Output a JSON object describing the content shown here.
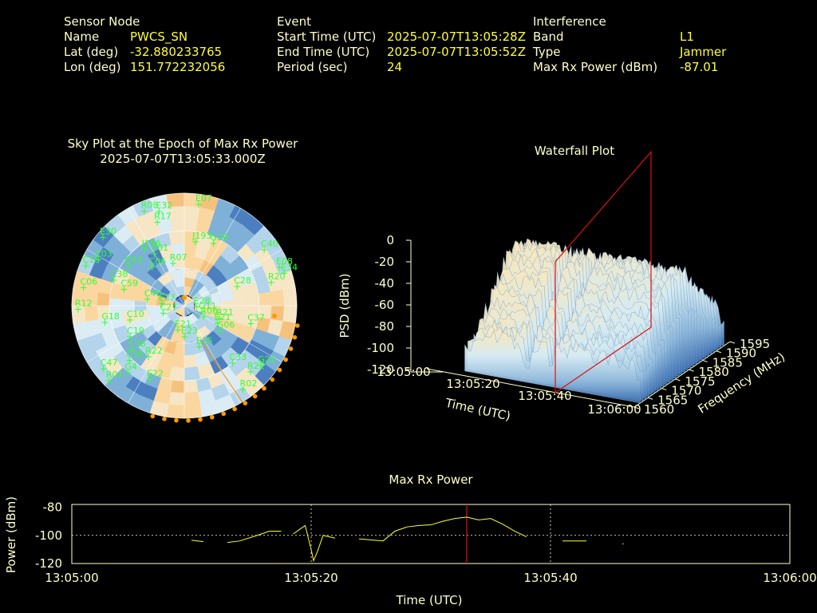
{
  "header": {
    "sensor": {
      "heading": "Sensor Node",
      "rows": [
        {
          "label": "Name",
          "value": "PWCS_SN"
        },
        {
          "label": "Lat (deg)",
          "value": "-32.880233765"
        },
        {
          "label": "Lon (deg)",
          "value": "151.772232056"
        }
      ]
    },
    "event": {
      "heading": "Event",
      "rows": [
        {
          "label": "Start Time (UTC)",
          "value": "2025-07-07T13:05:28Z"
        },
        {
          "label": "End Time (UTC)",
          "value": "2025-07-07T13:05:52Z"
        },
        {
          "label": "Period (sec)",
          "value": "24"
        }
      ]
    },
    "interference": {
      "heading": "Interference",
      "rows": [
        {
          "label": "Band",
          "value": "L1"
        },
        {
          "label": "Type",
          "value": "Jammer"
        },
        {
          "label": "Max Rx Power (dBm)",
          "value": "-87.01"
        }
      ]
    }
  },
  "sky_plot": {
    "title": "Sky Plot at the Epoch of Max Rx Power",
    "epoch": "2025-07-07T13:05:33.000Z",
    "satellites": [
      {
        "id": "R08",
        "az": 337,
        "el": 8
      },
      {
        "id": "E32",
        "az": 345,
        "el": 12
      },
      {
        "id": "R17",
        "az": 342,
        "el": 20
      },
      {
        "id": "E07",
        "az": 8,
        "el": 8
      },
      {
        "id": "E30",
        "az": 310,
        "el": 5
      },
      {
        "id": "J196",
        "az": 325,
        "el": 35
      },
      {
        "id": "C01",
        "az": 330,
        "el": 42
      },
      {
        "id": "J193",
        "az": 10,
        "el": 38
      },
      {
        "id": "G29",
        "az": 25,
        "el": 35
      },
      {
        "id": "C40",
        "az": 55,
        "el": 12
      },
      {
        "id": "E08",
        "az": 68,
        "el": 8
      },
      {
        "id": "E34",
        "az": 72,
        "el": 6
      },
      {
        "id": "R20",
        "az": 75,
        "el": 18
      },
      {
        "id": "C28",
        "az": 70,
        "el": 45
      },
      {
        "id": "G03",
        "az": 305,
        "el": 35
      },
      {
        "id": "C06",
        "az": 320,
        "el": 50
      },
      {
        "id": "R07",
        "az": 345,
        "el": 55
      },
      {
        "id": "C03",
        "az": 298,
        "el": 12
      },
      {
        "id": "C13",
        "az": 292,
        "el": 5
      },
      {
        "id": "C38",
        "az": 290,
        "el": 30
      },
      {
        "id": "C59",
        "az": 285,
        "el": 40
      },
      {
        "id": "C06b",
        "label": "C06",
        "az": 280,
        "el": 8
      },
      {
        "id": "C40b",
        "label": "C40",
        "az": 280,
        "el": 60
      },
      {
        "id": "E27",
        "az": 275,
        "el": 72
      },
      {
        "id": "C27",
        "az": 250,
        "el": 72
      },
      {
        "id": "G11",
        "az": 110,
        "el": 75
      },
      {
        "id": "E28",
        "az": 95,
        "el": 80
      },
      {
        "id": "R12",
        "az": 268,
        "el": 5
      },
      {
        "id": "G18",
        "az": 258,
        "el": 25
      },
      {
        "id": "C10",
        "az": 255,
        "el": 45
      },
      {
        "id": "C19",
        "az": 240,
        "el": 40
      },
      {
        "id": "R06",
        "az": 120,
        "el": 72
      },
      {
        "id": "E21",
        "az": 118,
        "el": 60
      },
      {
        "id": "G06",
        "az": 125,
        "el": 55
      },
      {
        "id": "R21",
        "az": 110,
        "el": 60
      },
      {
        "id": "C37",
        "az": 105,
        "el": 35
      },
      {
        "id": "E23",
        "az": 180,
        "el": 65
      },
      {
        "id": "E21b",
        "label": "E21",
        "az": 195,
        "el": 70
      },
      {
        "id": "C36",
        "az": 230,
        "el": 35
      },
      {
        "id": "C30",
        "az": 225,
        "el": 28
      },
      {
        "id": "R22",
        "az": 215,
        "el": 40
      },
      {
        "id": "G4",
        "az": 220,
        "el": 20
      },
      {
        "id": "E15",
        "az": 160,
        "el": 55
      },
      {
        "id": "C33",
        "az": 140,
        "el": 30
      },
      {
        "id": "E22",
        "az": 205,
        "el": 25
      },
      {
        "id": "R22b",
        "label": "R22",
        "az": 135,
        "el": 15
      },
      {
        "id": "G22",
        "az": 128,
        "el": 12
      },
      {
        "id": "C47",
        "az": 232,
        "el": 8
      },
      {
        "id": "R01",
        "az": 225,
        "el": 5
      },
      {
        "id": "R02",
        "az": 145,
        "el": 8
      }
    ]
  },
  "waterfall": {
    "title": "Waterfall Plot",
    "zlabel": "PSD (dBm)",
    "xlabel": "Time (UTC)",
    "ylabel": "Frequency (MHz)",
    "z_ticks": [
      "0",
      "-20",
      "-40",
      "-60",
      "-80",
      "-100",
      "-120"
    ],
    "time_ticks": [
      "13:05:00",
      "13:05:20",
      "13:05:40",
      "13:06:00"
    ],
    "freq_ticks": [
      "1560",
      "1565",
      "1570",
      "1575",
      "1580",
      "1585",
      "1590",
      "1595"
    ]
  },
  "chart_data": {
    "type": "line",
    "title": "Max Rx Power",
    "xlabel": "Time (UTC)",
    "ylabel": "Power (dBm)",
    "x_ticks": [
      "13:05:00",
      "13:05:20",
      "13:05:40",
      "13:06:00"
    ],
    "y_ticks": [
      -80,
      -100,
      -120
    ],
    "xlim": [
      0,
      60
    ],
    "ylim": [
      -120,
      -78
    ],
    "x_unit": "seconds after 13:05:00",
    "marker_time": 33,
    "series": [
      {
        "segments": [
          [
            [
              10,
              -103.5
            ],
            [
              11,
              -104.5
            ]
          ],
          [
            [
              13,
              -105
            ],
            [
              14,
              -104
            ],
            [
              15.5,
              -100
            ],
            [
              16.5,
              -97
            ],
            [
              17.5,
              -97
            ]
          ],
          [
            [
              18.5,
              -99
            ],
            [
              19,
              -96
            ],
            [
              19.5,
              -93
            ],
            [
              20,
              -110
            ],
            [
              20.2,
              -118
            ],
            [
              20.5,
              -112
            ],
            [
              21,
              -100
            ],
            [
              22,
              -102
            ]
          ],
          [
            [
              24,
              -102.5
            ],
            [
              26,
              -104
            ]
          ],
          [
            [
              26,
              -104
            ],
            [
              27,
              -97
            ],
            [
              28,
              -94
            ],
            [
              29,
              -93
            ],
            [
              30,
              -92.5
            ],
            [
              31,
              -90
            ],
            [
              32,
              -88
            ],
            [
              33,
              -87
            ],
            [
              34,
              -89
            ],
            [
              35,
              -88
            ],
            [
              36,
              -92
            ],
            [
              37,
              -97
            ],
            [
              38,
              -101
            ]
          ],
          [
            [
              41,
              -104
            ],
            [
              43,
              -104
            ]
          ],
          [
            [
              46,
              -106
            ],
            [
              46.1,
              -106
            ]
          ]
        ]
      }
    ]
  }
}
